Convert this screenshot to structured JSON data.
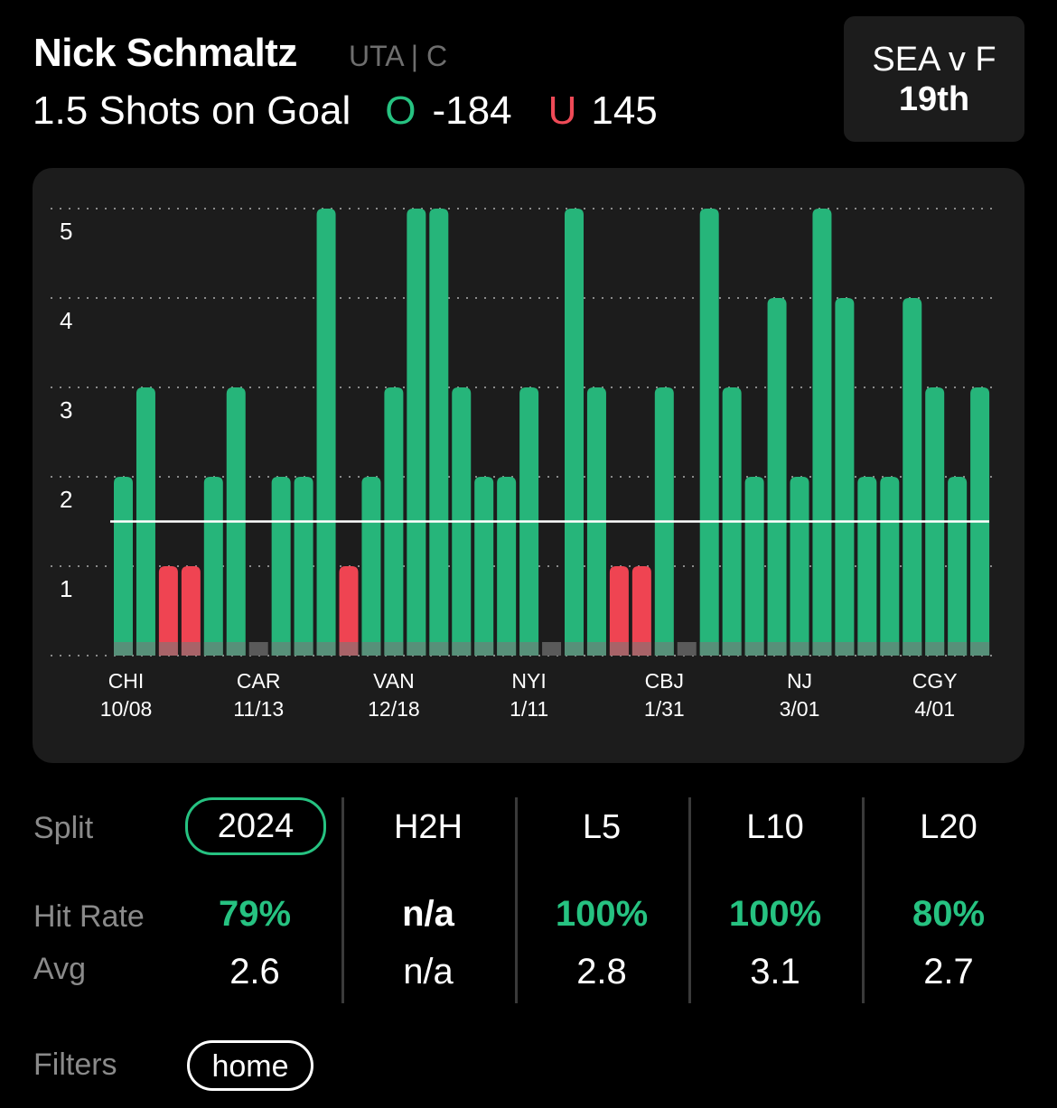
{
  "header": {
    "player_name": "Nick Schmaltz",
    "team_position": "UTA | C",
    "prop": "1.5 Shots on Goal",
    "over_label": "O",
    "over_odds": "-184",
    "under_label": "U",
    "under_odds": "145"
  },
  "matchup": {
    "teams": "SEA v F",
    "rank": "19th"
  },
  "colors": {
    "background": "#000000",
    "card": "#1c1c1c",
    "hit": "#26b57a",
    "miss": "#ef4452",
    "no_game": "#5a5a5a",
    "accent": "#26c281"
  },
  "chart_data": {
    "type": "bar",
    "ylim": [
      0,
      5
    ],
    "y_ticks": [
      1,
      2,
      3,
      4,
      5
    ],
    "threshold": 1.5,
    "grid": "dotted horizontal",
    "x_tick_labels": [
      {
        "team": "CHI",
        "date": "10/08"
      },
      {
        "team": "CAR",
        "date": "11/13"
      },
      {
        "team": "VAN",
        "date": "12/18"
      },
      {
        "team": "NYI",
        "date": "1/11"
      },
      {
        "team": "CBJ",
        "date": "1/31"
      },
      {
        "team": "NJ",
        "date": "3/01"
      },
      {
        "team": "CGY",
        "date": "4/01"
      }
    ],
    "label_at_game_index": [
      0,
      6,
      12,
      18,
      24,
      30,
      36
    ],
    "values": [
      2,
      3,
      1,
      1,
      2,
      3,
      0,
      2,
      2,
      5,
      1,
      2,
      3,
      5,
      5,
      3,
      2,
      2,
      3,
      0,
      5,
      3,
      1,
      1,
      3,
      0,
      5,
      3,
      2,
      4,
      2,
      5,
      4,
      2,
      2,
      4,
      3,
      2,
      3
    ]
  },
  "splits": {
    "split_label": "Split",
    "hit_rate_label": "Hit Rate",
    "avg_label": "Avg",
    "columns": [
      {
        "name": "2024",
        "hit_rate": "79%",
        "avg": "2.6"
      },
      {
        "name": "H2H",
        "hit_rate": "n/a",
        "avg": "n/a"
      },
      {
        "name": "L5",
        "hit_rate": "100%",
        "avg": "2.8"
      },
      {
        "name": "L10",
        "hit_rate": "100%",
        "avg": "3.1"
      },
      {
        "name": "L20",
        "hit_rate": "80%",
        "avg": "2.7"
      }
    ]
  },
  "filters": {
    "label": "Filters",
    "chips": [
      "home"
    ]
  }
}
